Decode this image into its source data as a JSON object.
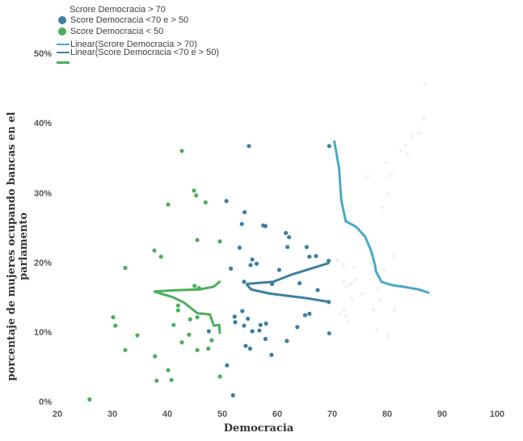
{
  "chart_data": {
    "type": "scatter",
    "title": "",
    "xlabel": "Democracia",
    "ylabel": "porcentaje de mujeres ocupando bancas en el parlamento",
    "xlim": [
      20,
      100
    ],
    "ylim": [
      0,
      50
    ],
    "x_ticks": [
      "20",
      "30",
      "40",
      "50",
      "60",
      "70",
      "80",
      "90",
      "100"
    ],
    "y_ticks": [
      "0%",
      "10%",
      "20%",
      "30%",
      "40%",
      "50%"
    ],
    "grid": false,
    "legend_position": "top-left",
    "legend": [
      {
        "label": "Scrore Democracia > 70",
        "marker": "none",
        "color": "#dddddd"
      },
      {
        "label": "Score Democracia <70 e > 50",
        "marker": "circle",
        "color": "#3d7fa0"
      },
      {
        "label": "Score Democracia < 50",
        "marker": "circle",
        "color": "#4caf5a"
      },
      {
        "label": "Linear(Scrore Democracia > 70)",
        "marker": "line",
        "color": "#4aa8c8"
      },
      {
        "label": "Linear(Score Democracia <70 e > 50)",
        "marker": "line",
        "color": "#3d7fa0"
      },
      {
        "label": "",
        "marker": "line",
        "color": "#4caf5a"
      }
    ],
    "series": [
      {
        "name": "Score Democracia < 50",
        "color": "#4caf5a",
        "points": [
          [
            42.8,
            36.1
          ],
          [
            45.0,
            30.4
          ],
          [
            45.4,
            29.7
          ],
          [
            47.1,
            28.7
          ],
          [
            40.3,
            28.4
          ],
          [
            45.6,
            23.3
          ],
          [
            49.7,
            23.1
          ],
          [
            37.8,
            21.8
          ],
          [
            39.0,
            20.9
          ],
          [
            32.5,
            19.3
          ],
          [
            45.1,
            16.7
          ],
          [
            45.9,
            16.4
          ],
          [
            42.1,
            13.9
          ],
          [
            42.1,
            13.2
          ],
          [
            41.3,
            11.1
          ],
          [
            44.3,
            11.9
          ],
          [
            45.6,
            12.2
          ],
          [
            30.3,
            12.2
          ],
          [
            30.7,
            11.0
          ],
          [
            34.7,
            9.6
          ],
          [
            44.1,
            9.7
          ],
          [
            42.8,
            8.6
          ],
          [
            48.2,
            8.9
          ],
          [
            45.6,
            7.5
          ],
          [
            47.6,
            7.7
          ],
          [
            32.5,
            7.5
          ],
          [
            37.9,
            6.6
          ],
          [
            40.3,
            4.6
          ],
          [
            38.2,
            3.1
          ],
          [
            40.9,
            3.2
          ],
          [
            49.7,
            3.7
          ],
          [
            26.0,
            0.4
          ]
        ]
      },
      {
        "name": "Score Democracia <70 e > 50",
        "color": "#3d7fa0",
        "points": [
          [
            55.0,
            36.8
          ],
          [
            69.6,
            36.8
          ],
          [
            50.9,
            28.9
          ],
          [
            54.2,
            27.3
          ],
          [
            53.7,
            25.6
          ],
          [
            57.6,
            25.4
          ],
          [
            58.0,
            25.3
          ],
          [
            61.7,
            24.3
          ],
          [
            62.3,
            23.7
          ],
          [
            53.3,
            22.2
          ],
          [
            62.0,
            22.3
          ],
          [
            65.5,
            22.3
          ],
          [
            67.2,
            21.0
          ],
          [
            66.0,
            20.9
          ],
          [
            55.6,
            20.5
          ],
          [
            55.3,
            19.7
          ],
          [
            56.4,
            19.9
          ],
          [
            60.5,
            19.0
          ],
          [
            69.5,
            20.3
          ],
          [
            51.7,
            19.2
          ],
          [
            54.1,
            17.3
          ],
          [
            64.2,
            17.1
          ],
          [
            67.5,
            16.1
          ],
          [
            69.5,
            14.4
          ],
          [
            59.2,
            17.0
          ],
          [
            66.0,
            12.7
          ],
          [
            65.2,
            12.5
          ],
          [
            63.8,
            10.8
          ],
          [
            69.6,
            9.9
          ],
          [
            61.9,
            8.8
          ],
          [
            53.8,
            13.1
          ],
          [
            52.4,
            12.3
          ],
          [
            54.8,
            12.0
          ],
          [
            52.5,
            11.5
          ],
          [
            54.1,
            11.0
          ],
          [
            57.1,
            11.1
          ],
          [
            58.1,
            11.3
          ],
          [
            55.6,
            10.2
          ],
          [
            56.9,
            10.3
          ],
          [
            58.0,
            9.1
          ],
          [
            54.4,
            8.1
          ],
          [
            55.2,
            7.7
          ],
          [
            59.1,
            6.8
          ],
          [
            51.0,
            5.3
          ],
          [
            52.1,
            1.0
          ],
          [
            47.7,
            10.2
          ]
        ]
      },
      {
        "name": "Scrore Democracia > 70",
        "color": "#e2e2e2",
        "points": [
          [
            87.0,
            45.8
          ],
          [
            84.5,
            38.2
          ],
          [
            85.9,
            38.7
          ],
          [
            83.4,
            36.9
          ],
          [
            82.6,
            36.2
          ],
          [
            83.8,
            35.6
          ],
          [
            80.0,
            34.4
          ],
          [
            76.6,
            32.4
          ],
          [
            80.9,
            32.6
          ],
          [
            80.3,
            30.0
          ],
          [
            79.3,
            28.0
          ],
          [
            81.3,
            21.0
          ],
          [
            77.1,
            20.0
          ],
          [
            79.7,
            19.1
          ],
          [
            74.1,
            19.4
          ],
          [
            71.1,
            20.4
          ],
          [
            74.3,
            17.6
          ],
          [
            72.2,
            17.3
          ],
          [
            73.4,
            16.9
          ],
          [
            72.7,
            16.6
          ],
          [
            73.6,
            17.1
          ],
          [
            78.5,
            16.2
          ],
          [
            75.6,
            15.6
          ],
          [
            73.7,
            14.9
          ],
          [
            72.3,
            13.3
          ],
          [
            72.6,
            12.4
          ],
          [
            71.6,
            12.6
          ],
          [
            73.0,
            11.7
          ],
          [
            77.6,
            13.3
          ],
          [
            78.8,
            14.6
          ],
          [
            81.5,
            13.2
          ],
          [
            80.3,
            9.5
          ],
          [
            78.3,
            10.4
          ],
          [
            72.2,
            19.8
          ],
          [
            86.8,
            40.7
          ]
        ]
      }
    ],
    "trend_lines": [
      {
        "name": "Linear(Scrore Democracia > 70)",
        "color": "#4aa8c8",
        "points": [
          [
            70.5,
            37.6
          ],
          [
            71.4,
            33.6
          ],
          [
            71.8,
            29.0
          ],
          [
            72.6,
            26.0
          ],
          [
            74.5,
            25.2
          ],
          [
            76.1,
            23.8
          ],
          [
            77.2,
            21.8
          ],
          [
            77.9,
            19.8
          ],
          [
            78.1,
            18.8
          ],
          [
            79.1,
            17.3
          ],
          [
            81.1,
            16.8
          ],
          [
            83.0,
            16.6
          ],
          [
            85.9,
            16.2
          ],
          [
            87.8,
            15.7
          ]
        ]
      },
      {
        "name": "Linear(Score Democracia <70 e > 50)",
        "color": "#3d7fa0",
        "points_upper": [
          [
            54.5,
            17.0
          ],
          [
            59.4,
            17.3
          ],
          [
            63.0,
            18.4
          ],
          [
            69.6,
            20.0
          ]
        ],
        "points_lower": [
          [
            54.5,
            17.0
          ],
          [
            55.4,
            16.2
          ],
          [
            58.8,
            15.6
          ],
          [
            65.0,
            15.0
          ],
          [
            69.7,
            14.4
          ]
        ]
      },
      {
        "name": "",
        "color": "#4caf5a",
        "points_upper": [
          [
            37.7,
            15.9
          ],
          [
            42.0,
            16.1
          ],
          [
            46.0,
            16.2
          ],
          [
            48.6,
            16.6
          ],
          [
            49.8,
            17.4
          ]
        ],
        "points_lower": [
          [
            37.7,
            15.9
          ],
          [
            41.1,
            15.1
          ],
          [
            43.2,
            14.3
          ],
          [
            45.6,
            12.8
          ],
          [
            47.9,
            12.6
          ],
          [
            48.6,
            11.0
          ],
          [
            49.6,
            11.1
          ],
          [
            49.7,
            9.8
          ]
        ]
      }
    ]
  }
}
